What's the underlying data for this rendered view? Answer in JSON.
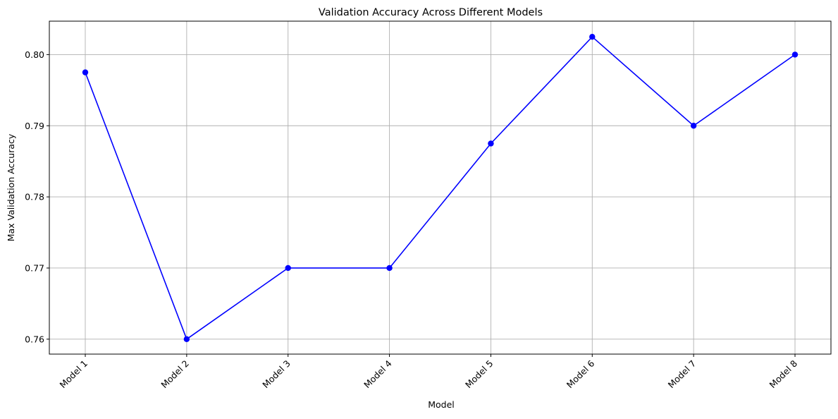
{
  "chart_data": {
    "type": "line",
    "title": "Validation Accuracy Across Different Models",
    "xlabel": "Model",
    "ylabel": "Max Validation Accuracy",
    "categories": [
      "Model 1",
      "Model 2",
      "Model 3",
      "Model 4",
      "Model 5",
      "Model 6",
      "Model 7",
      "Model 8"
    ],
    "series": [
      {
        "values": [
          0.7975,
          0.76,
          0.77,
          0.77,
          0.7875,
          0.8025,
          0.79,
          0.8
        ],
        "color": "#0000ff",
        "marker": "circle"
      }
    ],
    "yticks": [
      0.76,
      0.77,
      0.78,
      0.79,
      0.8
    ],
    "ytick_labels": [
      "0.76",
      "0.77",
      "0.78",
      "0.79",
      "0.80"
    ],
    "ylim": [
      0.7579,
      0.8047
    ],
    "grid": true,
    "xtick_rotation": 45
  }
}
